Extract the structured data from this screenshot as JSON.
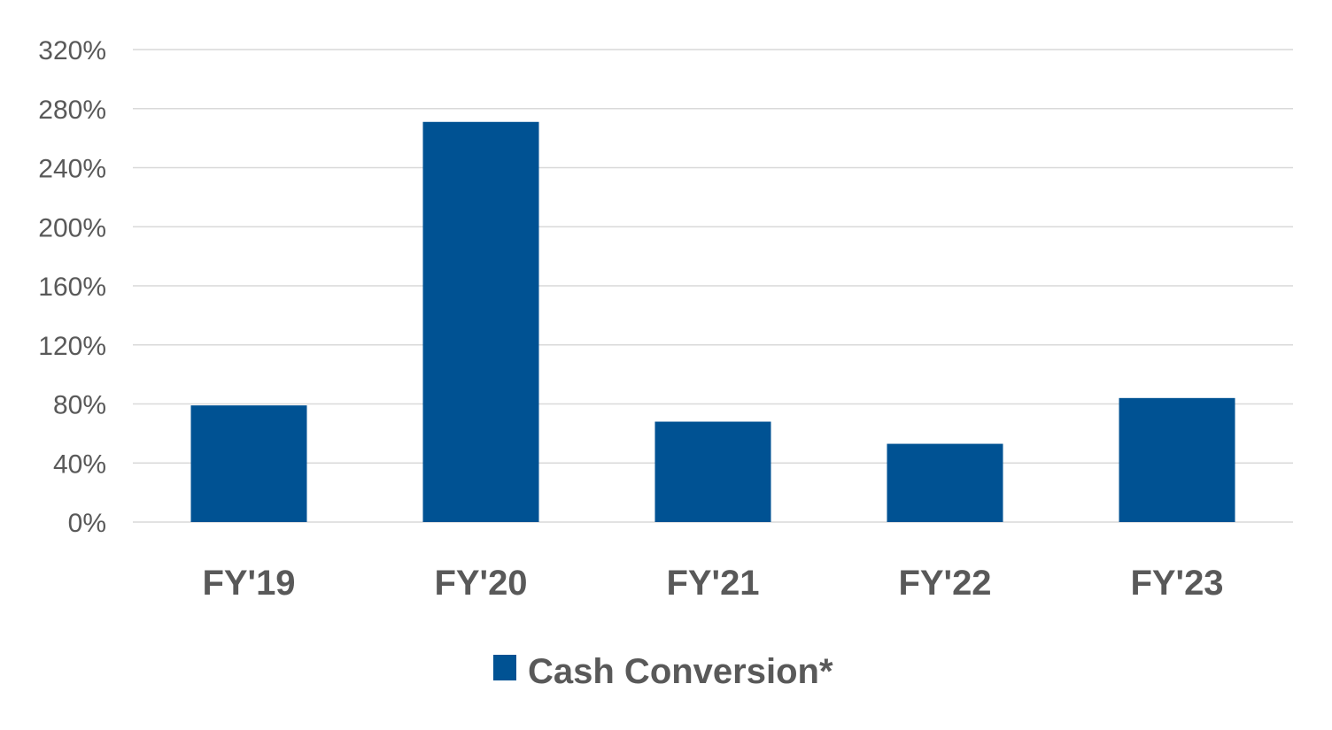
{
  "chart_data": {
    "type": "bar",
    "categories": [
      "FY'19",
      "FY'20",
      "FY'21",
      "FY'22",
      "FY'23"
    ],
    "series": [
      {
        "name": "Cash Conversion*",
        "values": [
          79,
          271,
          68,
          53,
          84
        ],
        "color": "#005293"
      }
    ],
    "title": "",
    "xlabel": "",
    "ylabel": "",
    "ylim": [
      0,
      320
    ],
    "y_ticks": [
      0,
      40,
      80,
      120,
      160,
      200,
      240,
      280,
      320
    ],
    "y_tick_labels": [
      "0%",
      "40%",
      "80%",
      "120%",
      "160%",
      "200%",
      "240%",
      "280%",
      "320%"
    ],
    "grid": true,
    "gridline_color": "#d9d9d9",
    "text_color": "#595959",
    "legend_position": "bottom-center"
  }
}
